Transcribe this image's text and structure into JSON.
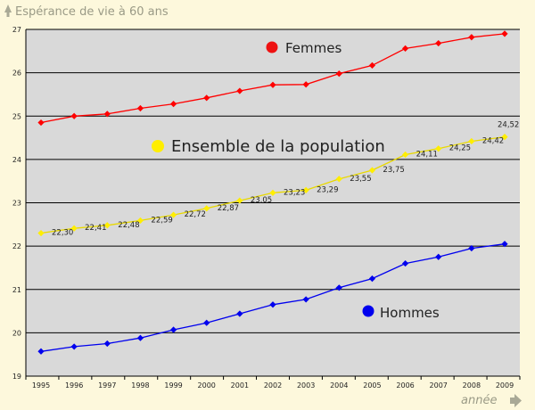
{
  "chart_data": {
    "type": "line",
    "ylabel": "Espérance de vie à 60 ans",
    "xlabel": "année",
    "ylim": [
      19,
      27
    ],
    "yticks": [
      19,
      20,
      21,
      22,
      23,
      24,
      25,
      26,
      27
    ],
    "grid": true,
    "legend_placement": "inline",
    "x": [
      "1995",
      "1996",
      "1997",
      "1998",
      "1999",
      "2000",
      "2001",
      "2002",
      "2003",
      "2004",
      "2005",
      "2006",
      "2007",
      "2008",
      "2009"
    ],
    "series": [
      {
        "name": "Femmes",
        "color": "#ff0000",
        "values": [
          24.85,
          25.0,
          25.05,
          25.18,
          25.28,
          25.42,
          25.58,
          25.72,
          25.73,
          25.98,
          26.17,
          26.56,
          26.68,
          26.82,
          26.9
        ]
      },
      {
        "name": "Ensemble de la population",
        "color": "#ffee00",
        "values": [
          22.3,
          22.41,
          22.48,
          22.59,
          22.72,
          22.87,
          23.05,
          23.23,
          23.29,
          23.55,
          23.75,
          24.11,
          24.25,
          24.42,
          24.52
        ],
        "data_labels": [
          "22,30",
          "22,41",
          "22,48",
          "22,59",
          "22,72",
          "22,87",
          "23,05",
          "23,23",
          "23,29",
          "23,55",
          "23,75",
          "24,11",
          "24,25",
          "24,42",
          "24,52"
        ]
      },
      {
        "name": "Hommes",
        "color": "#0000ee",
        "values": [
          19.57,
          19.68,
          19.75,
          19.88,
          20.07,
          20.23,
          20.44,
          20.65,
          20.77,
          21.04,
          21.25,
          21.6,
          21.75,
          21.95,
          22.05
        ]
      }
    ]
  }
}
